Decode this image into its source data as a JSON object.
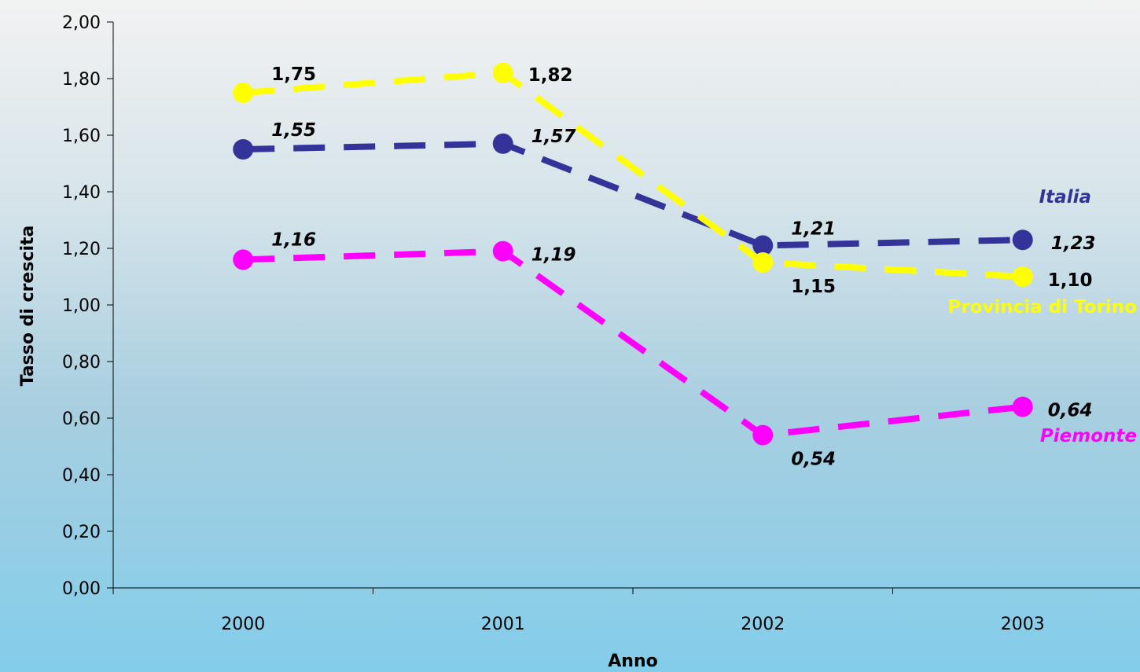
{
  "chart_data": {
    "type": "line",
    "categories": [
      "2000",
      "2001",
      "2002",
      "2003"
    ],
    "xlabel": "Anno",
    "ylabel": "Tasso di crescita",
    "ylim": [
      0,
      2
    ],
    "ytick_labels": [
      "0,00",
      "0,20",
      "0,40",
      "0,60",
      "0,80",
      "1,00",
      "1,20",
      "1,40",
      "1,60",
      "1,80",
      "2,00"
    ],
    "grid": false,
    "series": [
      {
        "name": "Italia",
        "values": [
          1.55,
          1.57,
          1.21,
          1.23
        ],
        "labels": [
          "1,55",
          "1,57",
          "1,21",
          "1,23"
        ],
        "color": "#333399",
        "style": "dashed",
        "label_italic": true
      },
      {
        "name": "Provincia di Torino",
        "values": [
          1.75,
          1.82,
          1.15,
          1.1
        ],
        "labels": [
          "1,75",
          "1,82",
          "1,15",
          "1,10"
        ],
        "color": "#ffff00",
        "style": "dashed",
        "label_italic": false
      },
      {
        "name": "Piemonte",
        "values": [
          1.16,
          1.19,
          0.54,
          0.64
        ],
        "labels": [
          "1,16",
          "1,19",
          "0,54",
          "0,64"
        ],
        "color": "#ff00ff",
        "style": "dashed",
        "label_italic": true
      }
    ]
  }
}
